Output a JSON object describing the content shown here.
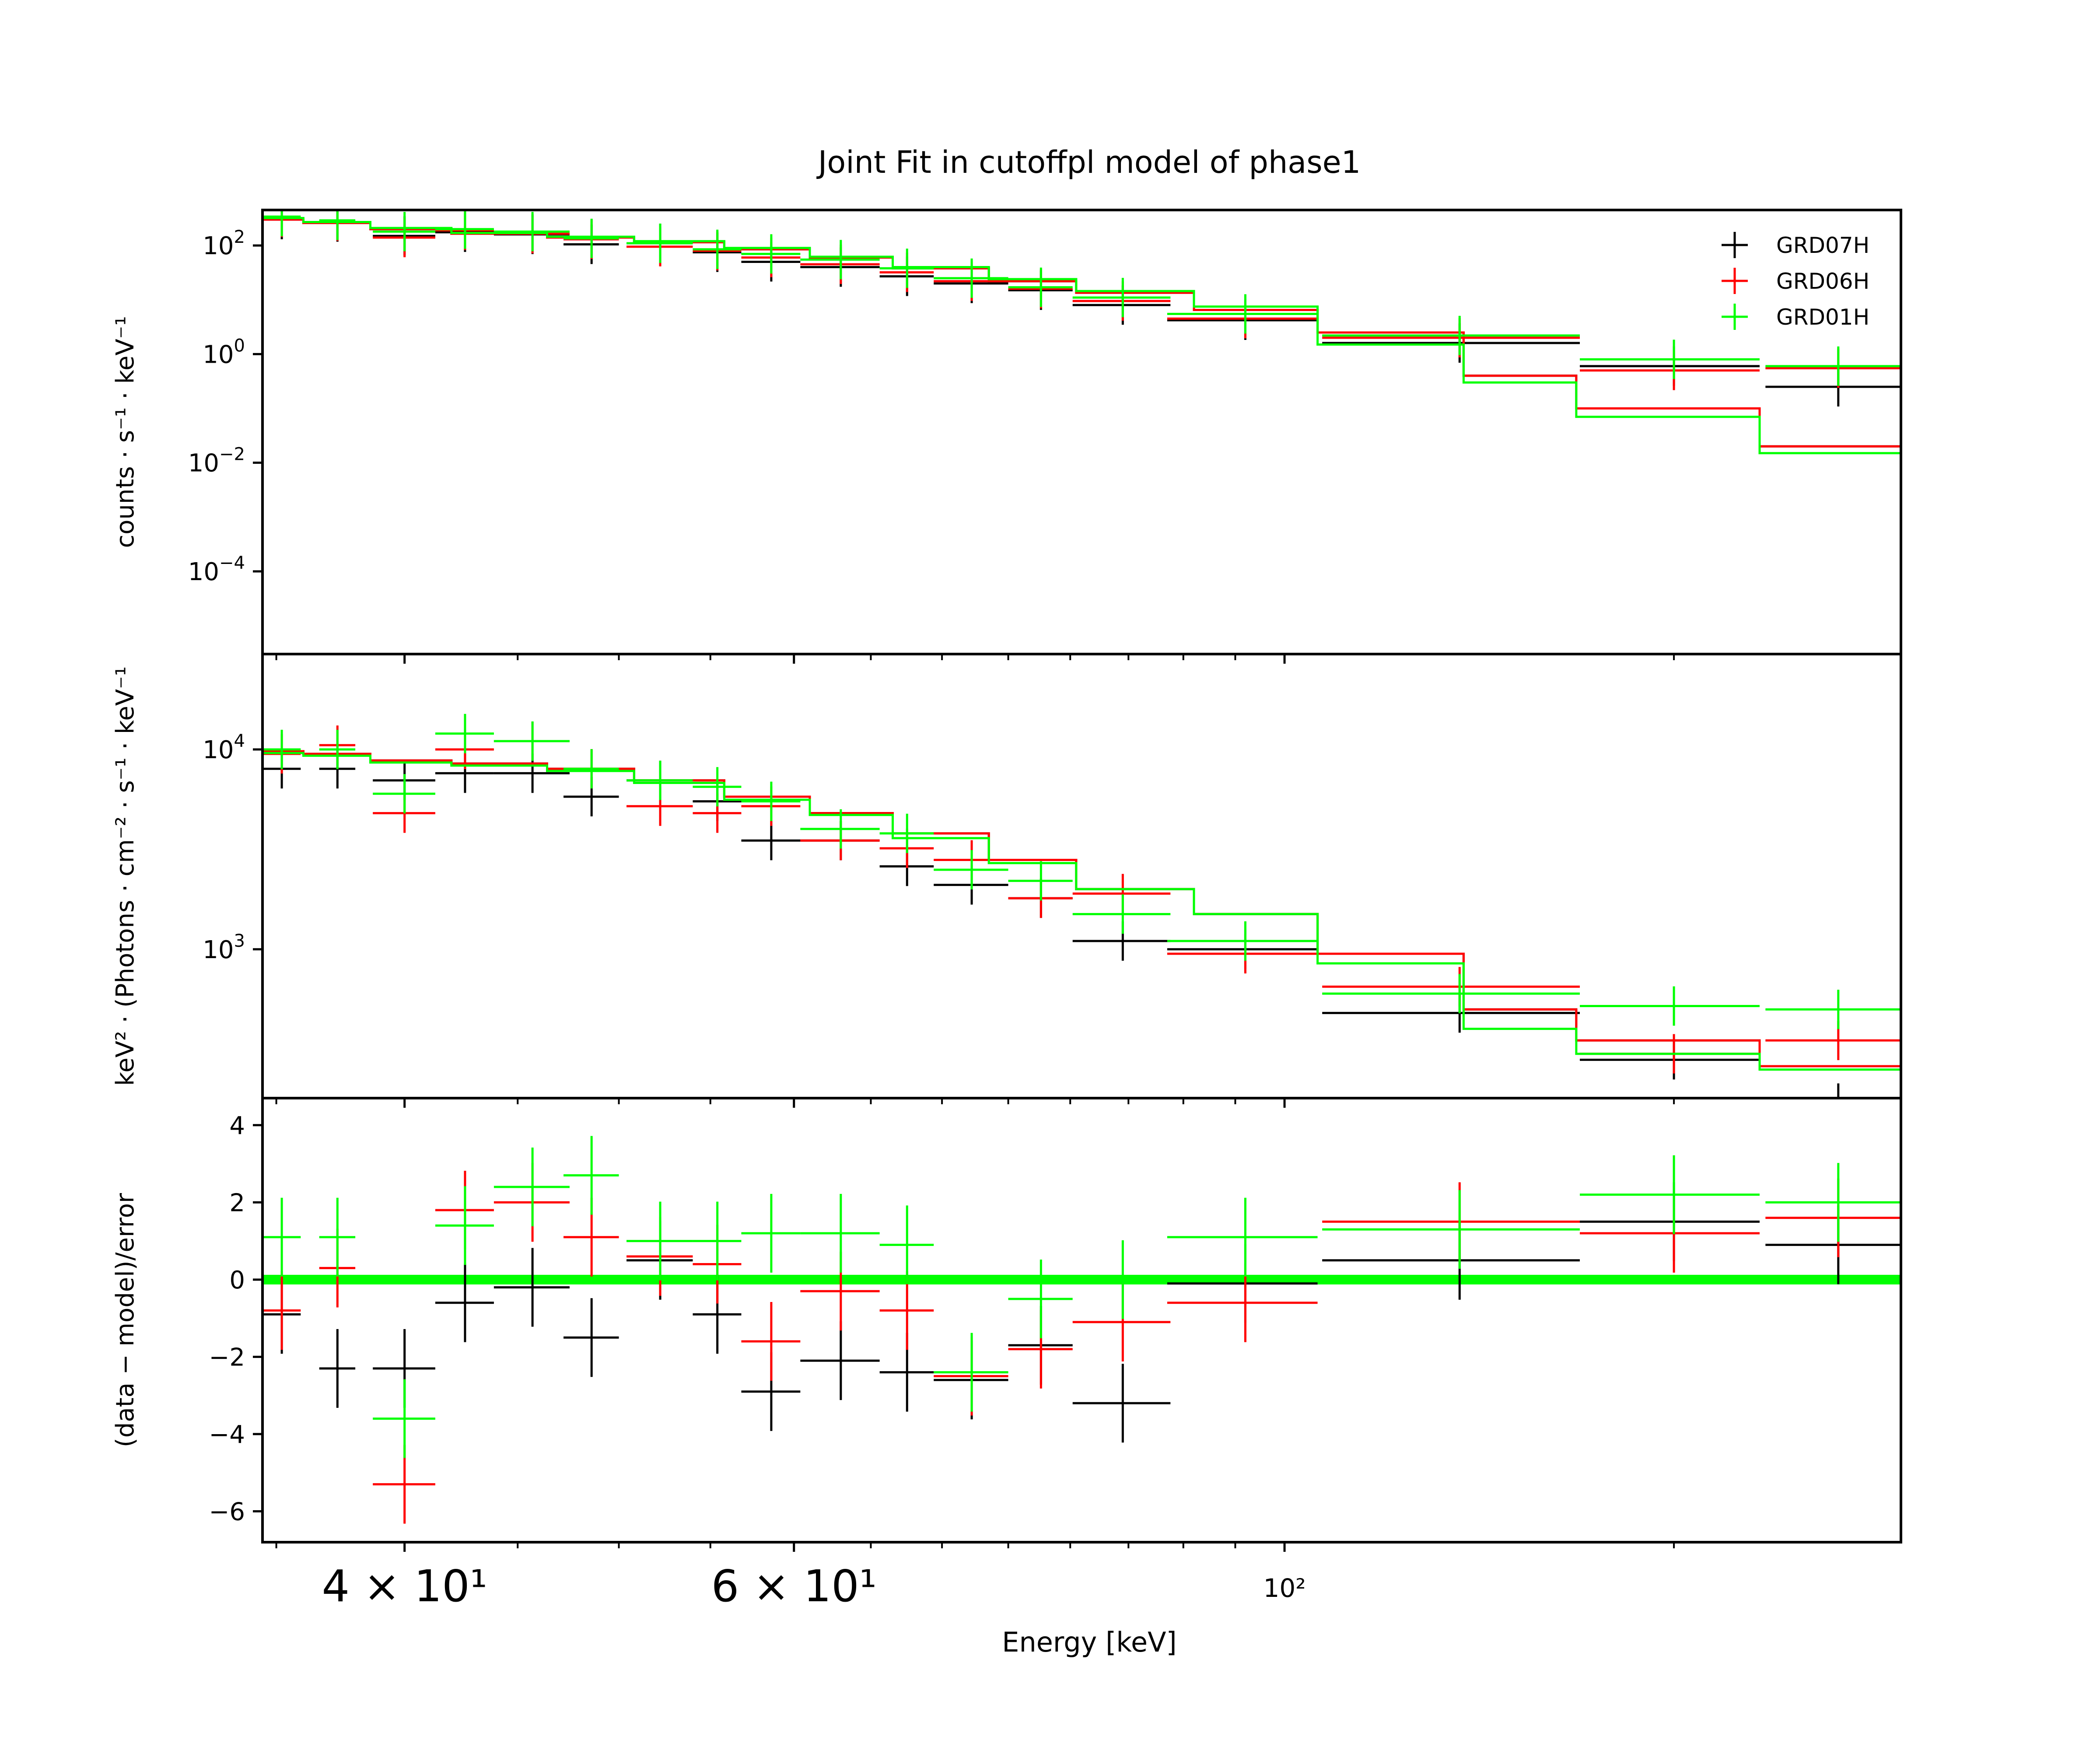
{
  "figure": {
    "title": "Joint Fit  in cutoffpl model of phase1",
    "xlabel": "Energy [keV]"
  },
  "legend": {
    "placement": "top-right",
    "entries": [
      {
        "name": "GRD07H",
        "color": "#000000"
      },
      {
        "name": "GRD06H",
        "color": "#ff0000"
      },
      {
        "name": "GRD01H",
        "color": "#00ff00"
      }
    ]
  },
  "chart_data": [
    {
      "type": "line",
      "panel": "counts",
      "xscale": "log",
      "yscale": "log",
      "xlim": [
        34.5,
        190
      ],
      "ylim": [
        3e-06,
        450
      ],
      "yticks": [
        100,
        1,
        0.01,
        0.0001
      ],
      "ylabel": "counts · s⁻¹ · keV⁻¹",
      "series": [
        {
          "name": "GRD07H",
          "color": "#000000",
          "x": [
            35.2,
            37.3,
            40,
            42.6,
            45.7,
            48.6,
            52.2,
            55.4,
            58.6,
            63,
            67.5,
            72.2,
            77.6,
            84.5,
            96,
            120,
            150,
            178
          ],
          "y": [
            300,
            270,
            150,
            175,
            160,
            105,
            110,
            75,
            50,
            40,
            27,
            20,
            15,
            8,
            4.2,
            1.6,
            0.6,
            0.25
          ],
          "xerr": [
            0.7,
            0.7,
            1.3,
            1.3,
            1.8,
            1.4,
            1.8,
            1.4,
            1.8,
            2.6,
            1.9,
            2.8,
            2.6,
            4.3,
            7.5,
            16,
            14,
            13
          ],
          "model_x": [
            34.5,
            36,
            38.6,
            42,
            46.4,
            50.8,
            55.8,
            61,
            66.5,
            73.5,
            80.5,
            91,
            103.5,
            120.5,
            135.5,
            164,
            192
          ],
          "model_y": [
            300,
            260,
            200,
            165,
            140,
            115,
            85,
            60,
            38,
            22,
            13.5,
            6.5,
            2.5,
            0.4,
            0.1,
            0.02,
            0.006
          ]
        },
        {
          "name": "GRD06H",
          "color": "#ff0000",
          "x": [
            35.2,
            37.3,
            40,
            42.6,
            45.7,
            48.6,
            52.2,
            55.4,
            58.6,
            63,
            67.5,
            72.2,
            77.6,
            84.5,
            96,
            120,
            150,
            178
          ],
          "y": [
            330,
            280,
            140,
            190,
            165,
            130,
            95,
            80,
            60,
            45,
            32,
            22,
            16,
            9.5,
            4.5,
            2,
            0.5,
            0.55
          ],
          "xerr": [
            0.7,
            0.7,
            1.3,
            1.3,
            1.8,
            1.4,
            1.8,
            1.4,
            1.8,
            2.6,
            1.9,
            2.8,
            2.6,
            4.3,
            7.5,
            16,
            14,
            13
          ],
          "model_x": [
            34.5,
            36,
            38.6,
            42,
            46.4,
            50.8,
            55.8,
            61,
            66.5,
            73.5,
            80.5,
            91,
            103.5,
            120.5,
            135.5,
            164,
            192
          ],
          "model_y": [
            300,
            260,
            200,
            165,
            140,
            115,
            85,
            60,
            38,
            22,
            13.5,
            6.5,
            2.5,
            0.4,
            0.1,
            0.02,
            0.006
          ]
        },
        {
          "name": "GRD01H",
          "color": "#00ff00",
          "x": [
            35.2,
            37.3,
            40,
            42.6,
            45.7,
            48.6,
            52.2,
            55.4,
            58.6,
            63,
            67.5,
            72.2,
            77.6,
            84.5,
            96,
            120,
            150,
            178
          ],
          "y": [
            340,
            290,
            180,
            200,
            180,
            135,
            110,
            85,
            70,
            55,
            38,
            25,
            17,
            11,
            5.5,
            2.2,
            0.8,
            0.6
          ],
          "xerr": [
            0.7,
            0.7,
            1.3,
            1.3,
            1.8,
            1.4,
            1.8,
            1.4,
            1.8,
            2.6,
            1.9,
            2.8,
            2.6,
            4.3,
            7.5,
            16,
            14,
            13
          ],
          "model_x": [
            34.5,
            36,
            38.6,
            42,
            46.4,
            50.8,
            55.8,
            61,
            66.5,
            73.5,
            80.5,
            91,
            103.5,
            120.5,
            135.5,
            164,
            192
          ],
          "model_y": [
            320,
            270,
            210,
            170,
            145,
            120,
            90,
            62,
            40,
            24,
            14.5,
            7.5,
            1.5,
            0.3,
            0.07,
            0.015,
            0.004
          ]
        }
      ]
    },
    {
      "type": "line",
      "panel": "spectrum",
      "xscale": "log",
      "yscale": "log",
      "xlim": [
        34.5,
        190
      ],
      "ylim": [
        180,
        30000
      ],
      "yticks": [
        10000,
        1000
      ],
      "ylabel": "keV² · (Photons · cm⁻² · s⁻¹ · keV⁻¹",
      "series": [
        {
          "name": "GRD07H",
          "color": "#000000",
          "x": [
            35.2,
            37.3,
            40,
            42.6,
            45.7,
            48.6,
            52.2,
            55.4,
            58.6,
            63,
            67.5,
            72.2,
            77.6,
            84.5,
            96,
            120,
            150,
            178
          ],
          "y": [
            8000,
            8000,
            7000,
            7600,
            7600,
            5800,
            7000,
            5500,
            3500,
            3500,
            2600,
            2100,
            1800,
            1100,
            1000,
            480,
            280,
            170
          ],
          "xerr": [
            0.7,
            0.7,
            1.3,
            1.3,
            1.8,
            1.4,
            1.8,
            1.4,
            1.8,
            2.6,
            1.9,
            2.8,
            2.6,
            4.3,
            7.5,
            16,
            14,
            13
          ],
          "model_x": [
            34.5,
            36,
            38.6,
            42,
            46.4,
            50.8,
            55.8,
            61,
            66.5,
            73.5,
            80.5,
            91,
            103.5,
            120.5,
            135.5,
            164,
            192
          ],
          "model_y": [
            9800,
            9500,
            8800,
            8500,
            8000,
            7000,
            5800,
            4800,
            3800,
            2800,
            2000,
            1500,
            950,
            500,
            350,
            260,
            480
          ]
        },
        {
          "name": "GRD06H",
          "color": "#ff0000",
          "x": [
            35.2,
            37.3,
            40,
            42.6,
            45.7,
            48.6,
            52.2,
            55.4,
            58.6,
            63,
            67.5,
            72.2,
            77.6,
            84.5,
            96,
            120,
            150,
            178
          ],
          "y": [
            9500,
            10500,
            4800,
            10000,
            11000,
            8000,
            5200,
            4800,
            5200,
            3500,
            3200,
            2800,
            1800,
            1900,
            950,
            650,
            300,
            350
          ],
          "xerr": [
            0.7,
            0.7,
            1.3,
            1.3,
            1.8,
            1.4,
            1.8,
            1.4,
            1.8,
            2.6,
            1.9,
            2.8,
            2.6,
            4.3,
            7.5,
            16,
            14,
            13
          ],
          "model_x": [
            34.5,
            36,
            38.6,
            42,
            46.4,
            50.8,
            55.8,
            61,
            66.5,
            73.5,
            80.5,
            91,
            103.5,
            120.5,
            135.5,
            164,
            192
          ],
          "model_y": [
            9800,
            9500,
            8800,
            8500,
            8000,
            7000,
            5800,
            4800,
            3800,
            2800,
            2000,
            1500,
            950,
            500,
            350,
            260,
            480
          ]
        },
        {
          "name": "GRD01H",
          "color": "#00ff00",
          "x": [
            35.2,
            37.3,
            40,
            42.6,
            45.7,
            48.6,
            52.2,
            55.4,
            58.6,
            63,
            67.5,
            72.2,
            77.6,
            84.5,
            96,
            120,
            150,
            178
          ],
          "y": [
            10000,
            10000,
            6000,
            12000,
            11000,
            8000,
            7000,
            6500,
            5500,
            4000,
            3800,
            2500,
            2200,
            1500,
            1100,
            600,
            520,
            500
          ],
          "xerr": [
            0.7,
            0.7,
            1.3,
            1.3,
            1.8,
            1.4,
            1.8,
            1.4,
            1.8,
            2.6,
            1.9,
            2.8,
            2.6,
            4.3,
            7.5,
            16,
            14,
            13
          ],
          "model_x": [
            34.5,
            36,
            38.6,
            42,
            46.4,
            50.8,
            55.8,
            61,
            66.5,
            73.5,
            80.5,
            91,
            103.5,
            120.5,
            135.5,
            164,
            192
          ],
          "model_y": [
            9600,
            9300,
            8600,
            8300,
            7800,
            6800,
            5600,
            4700,
            3600,
            2700,
            2000,
            1500,
            850,
            400,
            300,
            250,
            500
          ]
        }
      ]
    },
    {
      "type": "scatter",
      "panel": "residuals",
      "xscale": "log",
      "yscale": "linear",
      "xlim": [
        34.5,
        190
      ],
      "ylim": [
        -6.8,
        4.7
      ],
      "yticks": [
        4,
        2,
        0,
        -2,
        -4,
        -6
      ],
      "ylabel": "(data − model)/error",
      "zero_line_color": "#00ff00",
      "series": [
        {
          "name": "GRD07H",
          "color": "#000000",
          "x": [
            35.2,
            37.3,
            40,
            42.6,
            45.7,
            48.6,
            52.2,
            55.4,
            58.6,
            63,
            67.5,
            72.2,
            77.6,
            84.5,
            96,
            120,
            150,
            178
          ],
          "y": [
            -0.9,
            -2.3,
            -2.3,
            -0.6,
            -0.2,
            -1.5,
            0.5,
            -0.9,
            -2.9,
            -2.1,
            -2.4,
            -2.6,
            -1.7,
            -3.2,
            -0.1,
            0.5,
            1.5,
            0.9
          ],
          "xerr": [
            0.7,
            0.7,
            1.3,
            1.3,
            1.8,
            1.4,
            1.8,
            1.4,
            1.8,
            2.6,
            1.9,
            2.8,
            2.6,
            4.3,
            7.5,
            16,
            14,
            13
          ]
        },
        {
          "name": "GRD06H",
          "color": "#ff0000",
          "x": [
            35.2,
            37.3,
            40,
            42.6,
            45.7,
            48.6,
            52.2,
            55.4,
            58.6,
            63,
            67.5,
            72.2,
            77.6,
            84.5,
            96,
            120,
            150,
            178
          ],
          "y": [
            -0.8,
            0.3,
            -5.3,
            1.8,
            2.0,
            1.1,
            0.6,
            0.4,
            -1.6,
            -0.3,
            -0.8,
            -2.5,
            -1.8,
            -1.1,
            -0.6,
            1.5,
            1.2,
            1.6
          ],
          "xerr": [
            0.7,
            0.7,
            1.3,
            1.3,
            1.8,
            1.4,
            1.8,
            1.4,
            1.8,
            2.6,
            1.9,
            2.8,
            2.6,
            4.3,
            7.5,
            16,
            14,
            13
          ]
        },
        {
          "name": "GRD01H",
          "color": "#00ff00",
          "x": [
            35.2,
            37.3,
            40,
            42.6,
            45.7,
            48.6,
            52.2,
            55.4,
            58.6,
            63,
            67.5,
            72.2,
            77.6,
            84.5,
            96,
            120,
            150,
            178
          ],
          "y": [
            1.1,
            1.1,
            -3.6,
            1.4,
            2.4,
            2.7,
            1.0,
            1.0,
            1.2,
            1.2,
            0.9,
            -2.4,
            -0.5,
            0.0,
            1.1,
            1.3,
            2.2,
            2.0
          ],
          "xerr": [
            0.7,
            0.7,
            1.3,
            1.3,
            1.8,
            1.4,
            1.8,
            1.4,
            1.8,
            2.6,
            1.9,
            2.8,
            2.6,
            4.3,
            7.5,
            16,
            14,
            13
          ]
        }
      ]
    }
  ],
  "xticks": [
    {
      "value": 40,
      "label": "4 × 10¹",
      "size": "large"
    },
    {
      "value": 60,
      "label": "6 × 10¹",
      "size": "large"
    },
    {
      "value": 100,
      "label": "10²",
      "size": "small"
    }
  ],
  "xminorticks": [
    35,
    45,
    50,
    55,
    65,
    70,
    75,
    80,
    85,
    90,
    95,
    150,
    200
  ]
}
